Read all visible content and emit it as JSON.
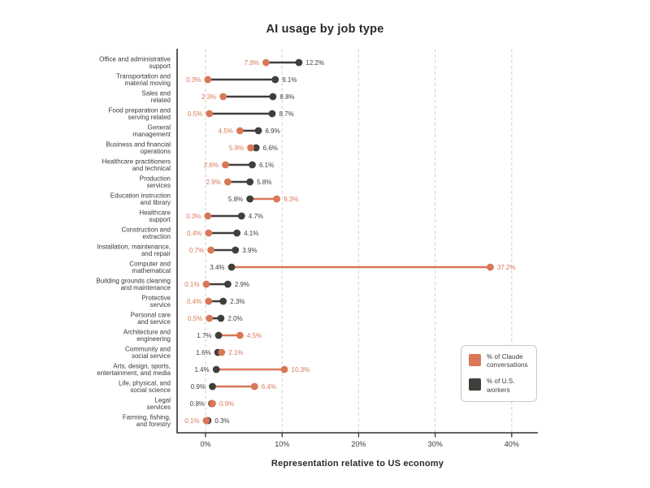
{
  "title": "AI usage by job type",
  "xlabel": "Representation relative to US economy",
  "colors": {
    "claude_orange": "#D97757",
    "workers_dark": "#403F3C",
    "gridline": "#d8d6d1",
    "axis": "#33322f",
    "category_text": "#3b3a37"
  },
  "legend": {
    "claude_label": "% of Claude conversations",
    "workers_label": "% of U.S. workers"
  },
  "chart_data": {
    "type": "dumbbell",
    "title": "AI usage by job type",
    "xlabel": "Representation relative to US economy",
    "x_ticks": [
      "0%",
      "10%",
      "20%",
      "30%",
      "40%"
    ],
    "x_tick_values": [
      0,
      10,
      20,
      30,
      40
    ],
    "xlim": [
      -3.7,
      43.4
    ],
    "grid": "dashed-vertical",
    "legend_position": "lower-right",
    "categories": [
      "Office and administrative support",
      "Transportation and material moving",
      "Sales and related",
      "Food preparation and serving related",
      "General management",
      "Business and financial operations",
      "Healthcare practitioners and technical",
      "Production services",
      "Education instruction and library",
      "Healthcare support",
      "Construction and extraction",
      "Installation, maintenance, and repair",
      "Computer and mathematical",
      "Building grounds cleaning and maintenance",
      "Protective service",
      "Personal care and service",
      "Architecture and engineering",
      "Community and social service",
      "Arts, design, sports, entertainment, and media",
      "Life, physical, and social science",
      "Legal services",
      "Farming, fishing, and forestry"
    ],
    "category_lines": [
      [
        "Office and administrative",
        "support"
      ],
      [
        "Transportation and",
        "material moving"
      ],
      [
        "Sales and",
        "related"
      ],
      [
        "Food preparation and",
        "serving related"
      ],
      [
        "General",
        "management"
      ],
      [
        "Business and financial",
        "operations"
      ],
      [
        "Healthcare practitioners",
        "and technical"
      ],
      [
        "Production",
        "services"
      ],
      [
        "Education instruction",
        "and library"
      ],
      [
        "Healthcare",
        "support"
      ],
      [
        "Construction and",
        "extraction"
      ],
      [
        "Installation, maintenance,",
        "and repair"
      ],
      [
        "Computer and",
        "mathematical"
      ],
      [
        "Building grounds cleaning",
        "and maintenance"
      ],
      [
        "Protective",
        "service"
      ],
      [
        "Personal care",
        "and service"
      ],
      [
        "Architecture and",
        "engineering"
      ],
      [
        "Community and",
        "social service"
      ],
      [
        "Arts, design, sports,",
        "entertainment, and media"
      ],
      [
        "Life, physical, and",
        "social science"
      ],
      [
        "Legal",
        "services"
      ],
      [
        "Farming, fishing,",
        "and forestry"
      ]
    ],
    "series": [
      {
        "name": "% of Claude conversations",
        "color": "#D97757",
        "values": [
          7.9,
          0.3,
          2.3,
          0.5,
          4.5,
          5.9,
          2.6,
          2.9,
          9.3,
          0.3,
          0.4,
          0.7,
          37.2,
          0.1,
          0.4,
          0.5,
          4.5,
          2.1,
          10.3,
          6.4,
          0.9,
          0.1
        ]
      },
      {
        "name": "% of U.S. workers",
        "color": "#403F3C",
        "values": [
          12.2,
          9.1,
          8.8,
          8.7,
          6.9,
          6.6,
          6.1,
          5.8,
          5.8,
          4.7,
          4.1,
          3.9,
          3.4,
          2.9,
          2.3,
          2.0,
          1.7,
          1.6,
          1.4,
          0.9,
          0.8,
          0.3
        ]
      }
    ]
  }
}
